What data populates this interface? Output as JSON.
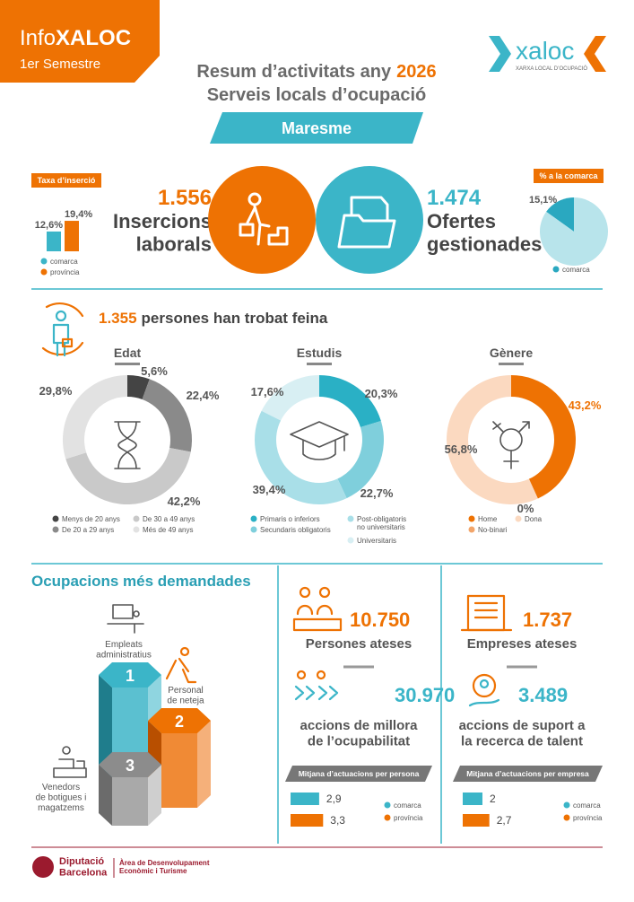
{
  "header": {
    "brand_prefix": "Info",
    "brand_name": "XALOC",
    "period": "1er Semestre",
    "logo_name": "xaloc",
    "logo_tagline": "XARXA LOCAL D’OCUPACIÓ",
    "title_prefix": "Resum d’activitats any",
    "year": "2026",
    "subtitle": "Serveis locals d’ocupació",
    "region": "Maresme"
  },
  "insertions": {
    "value": "1.556",
    "label": "Insercions\nlaborals"
  },
  "offers": {
    "value": "1.474",
    "label": "Ofertes\ngestionades"
  },
  "employment": {
    "value": "1.355",
    "label": "persones han trobat feina"
  },
  "occupations": {
    "title": "Ocupacions més demandades",
    "items": [
      {
        "rank": "1",
        "label": "Empleats\nadministratius"
      },
      {
        "rank": "2",
        "label": "Personal\nde neteja"
      },
      {
        "rank": "3",
        "label": "Venedors\nde botigues i\nmagatzems"
      }
    ]
  },
  "people": {
    "served_value": "10.750",
    "served_label": "Persones ateses",
    "actions_value": "30.970",
    "actions_label": "accions de millora\nde l’ocupabilitat"
  },
  "companies": {
    "served_value": "1.737",
    "served_label": "Empreses ateses",
    "actions_value": "3.489",
    "actions_label": "accions de suport a\nla recerca de talent"
  },
  "footer": {
    "org": "Diputació\nBarcelona",
    "department": "Àrea de Desenvolupament\nEconòmic i Turisme"
  },
  "chart_data": [
    {
      "type": "bar",
      "title": "Taxa d’inserció",
      "categories": [
        "comarca",
        "província"
      ],
      "values": [
        12.6,
        19.4
      ],
      "value_labels": [
        "12,6%",
        "19,4%"
      ],
      "colors": [
        "#3bb5c8",
        "#ee7203"
      ]
    },
    {
      "type": "pie",
      "title": "% a la comarca",
      "categories": [
        "comarca",
        null
      ],
      "values": [
        15.1,
        84.9
      ],
      "value_labels": [
        "15,1%",
        null
      ],
      "colors": [
        "#2aa8c0",
        "#b8e4eb"
      ]
    },
    {
      "type": "donut",
      "title": "Edat",
      "categories": [
        "Menys de 20 anys",
        "De 20 a 29 anys",
        "De 30 a 49 anys",
        "Més de 49 anys"
      ],
      "values": [
        5.6,
        22.4,
        42.2,
        29.8
      ],
      "value_labels": [
        "5,6%",
        "22,4%",
        "42,2%",
        "29,8%"
      ],
      "colors": [
        "#444444",
        "#8a8a8a",
        "#c9c9c9",
        "#e2e2e2"
      ]
    },
    {
      "type": "donut",
      "title": "Estudis",
      "categories": [
        "Primaris o inferiors",
        "Secundaris obligatoris",
        "Post-obligatoris\nno universitaris",
        "Universitaris"
      ],
      "values": [
        20.3,
        22.7,
        39.4,
        17.6
      ],
      "value_labels": [
        "20,3%",
        "22,7%",
        "39,4%",
        "17,6%"
      ],
      "colors": [
        "#2ab0c5",
        "#7fcfdc",
        "#a9dfe8",
        "#d8eff3"
      ]
    },
    {
      "type": "donut",
      "title": "Gènere",
      "categories": [
        "Home",
        "No-binari",
        "Dona"
      ],
      "values": [
        43.2,
        0,
        56.8
      ],
      "value_labels": [
        "43,2%",
        "0%",
        "56,8%"
      ],
      "colors": [
        "#ee7203",
        "#f2a56a",
        "#fbd9c0"
      ]
    },
    {
      "type": "hbar",
      "title": "Mitjana d’actuacions per persona",
      "categories": [
        "comarca",
        "província"
      ],
      "values": [
        2.9,
        3.3
      ],
      "value_labels": [
        "2,9",
        "3,3"
      ],
      "colors": [
        "#3bb5c8",
        "#ee7203"
      ]
    },
    {
      "type": "hbar",
      "title": "Mitjana d’actuacions per empresa",
      "categories": [
        "comarca",
        "província"
      ],
      "values": [
        2,
        2.7
      ],
      "value_labels": [
        "2",
        "2,7"
      ],
      "colors": [
        "#3bb5c8",
        "#ee7203"
      ]
    }
  ]
}
